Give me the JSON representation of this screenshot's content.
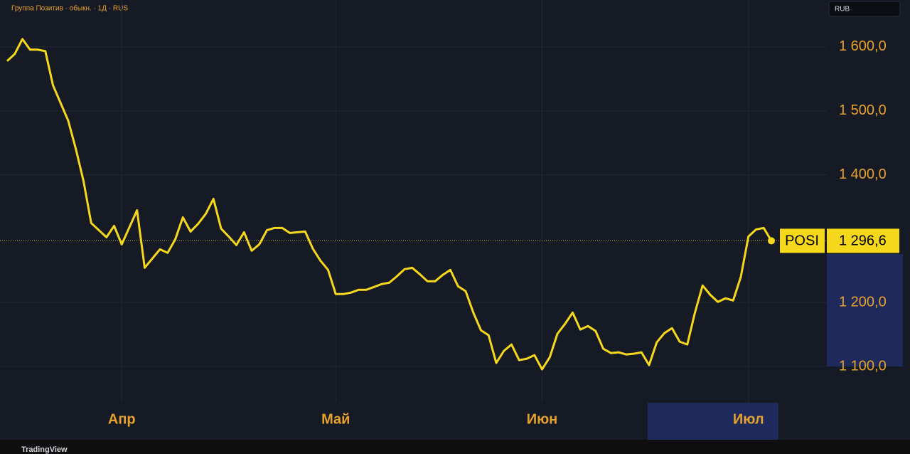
{
  "header": {
    "title": "Группа Позитив · обыкн. · 1Д · RUS",
    "currency": "RUB"
  },
  "footer": {
    "brand": "TradingView"
  },
  "chart_data": {
    "type": "line",
    "categories": [
      null,
      null,
      null,
      null,
      null,
      null,
      null,
      null,
      null,
      null,
      null,
      null,
      null,
      null,
      null,
      "Апр",
      null,
      null,
      null,
      null,
      null,
      null,
      null,
      null,
      null,
      null,
      null,
      null,
      null,
      null,
      null,
      null,
      null,
      null,
      null,
      null,
      null,
      null,
      null,
      null,
      null,
      null,
      null,
      "Май",
      null,
      null,
      null,
      null,
      null,
      null,
      null,
      null,
      null,
      null,
      null,
      null,
      null,
      null,
      null,
      null,
      null,
      null,
      null,
      null,
      null,
      null,
      null,
      null,
      null,
      null,
      "Июн",
      null,
      null,
      null,
      null,
      null,
      null,
      null,
      null,
      null,
      null,
      null,
      null,
      null,
      null,
      null,
      null,
      null,
      null,
      null,
      null,
      null,
      null,
      null,
      null,
      null,
      null,
      "Июл",
      null,
      null,
      null
    ],
    "series": [
      {
        "name": "POSI",
        "color": "#f5d81c",
        "values": [
          1577.8,
          1588.9,
          1612.2,
          1595.6,
          1595.6,
          1593.3,
          1540.0,
          1512.2,
          1484.4,
          1440.0,
          1390.0,
          1324.4,
          1313.3,
          1302.2,
          1320.0,
          1291.1,
          1317.8,
          1344.4,
          1254.4,
          1268.9,
          1283.3,
          1277.8,
          1298.9,
          1333.3,
          1311.1,
          1323.3,
          1338.9,
          1362.2,
          1315.6,
          1303.3,
          1290.0,
          1310.0,
          1281.1,
          1291.1,
          1313.3,
          1316.7,
          1316.7,
          1308.9,
          1310.0,
          1311.1,
          1284.4,
          1265.6,
          1251.1,
          1213.3,
          1213.3,
          1215.6,
          1220.0,
          1220.0,
          1224.4,
          1228.9,
          1231.1,
          1241.1,
          1252.2,
          1254.4,
          1244.4,
          1233.3,
          1233.3,
          1243.3,
          1251.1,
          1225.6,
          1217.8,
          1184.4,
          1156.7,
          1148.9,
          1105.6,
          1124.4,
          1134.4,
          1110.0,
          1112.2,
          1117.8,
          1095.6,
          1114.4,
          1151.1,
          1166.7,
          1184.4,
          1157.8,
          1163.3,
          1155.6,
          1127.8,
          1121.1,
          1122.2,
          1118.9,
          1120.0,
          1122.2,
          1102.2,
          1137.8,
          1152.2,
          1160.0,
          1138.9,
          1134.4,
          1184.4,
          1226.7,
          1212.2,
          1201.1,
          1206.7,
          1203.3,
          1240.0,
          1303.3,
          1314.4,
          1316.7,
          1296.6
        ],
        "value_labels": [
          null,
          null,
          null,
          null,
          null,
          null,
          null,
          null,
          null,
          null,
          null,
          null,
          null,
          null,
          null,
          null,
          null,
          null,
          null,
          null,
          null,
          null,
          null,
          null,
          null,
          null,
          null,
          null,
          null,
          null,
          null,
          null,
          null,
          null,
          null,
          null,
          null,
          null,
          null,
          null,
          null,
          null,
          null,
          null,
          null,
          null,
          null,
          null,
          null,
          null,
          null,
          null,
          null,
          null,
          null,
          null,
          null,
          null,
          null,
          null,
          null,
          null,
          null,
          null,
          null,
          null,
          null,
          null,
          null,
          null,
          null,
          null,
          null,
          null,
          null,
          null,
          null,
          null,
          null,
          null,
          null,
          null,
          null,
          null,
          null,
          null,
          null,
          null,
          null,
          null,
          null,
          null,
          null,
          null,
          null,
          null,
          null,
          null,
          null,
          null,
          "1 296,6"
        ]
      }
    ],
    "ylim": [
      1044.4,
      1673.3
    ],
    "yticks": [
      {
        "value": 1100,
        "label": "1 100,0"
      },
      {
        "value": 1200,
        "label": "1 200,0"
      },
      {
        "value": 1400,
        "label": "1 400,0"
      },
      {
        "value": 1500,
        "label": "1 500,0"
      },
      {
        "value": 1600,
        "label": "1 600,0"
      }
    ],
    "grid": true
  }
}
